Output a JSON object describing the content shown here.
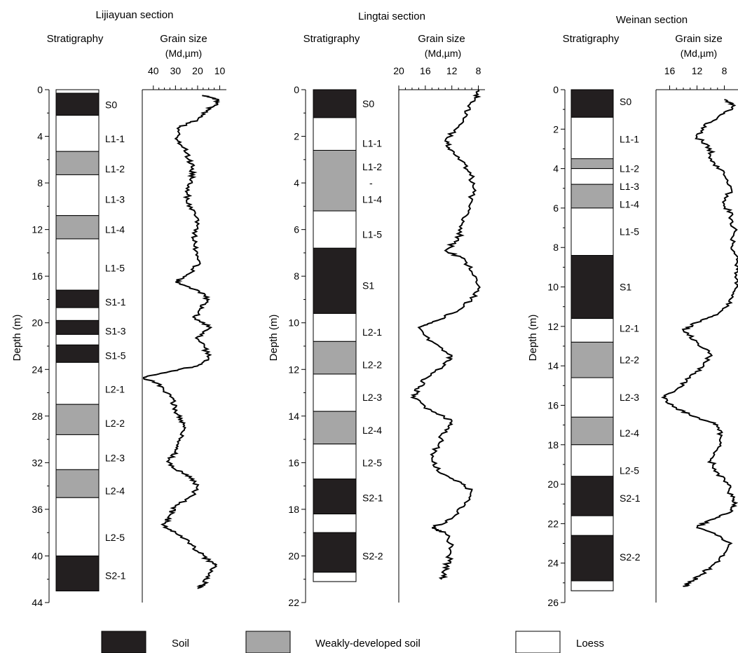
{
  "legend": {
    "items": [
      {
        "label": "Soil",
        "color": "#231f20"
      },
      {
        "label": "Weakly-developed soil",
        "color": "#a6a6a6"
      },
      {
        "label": "Loess",
        "color": "#ffffff"
      }
    ]
  },
  "chart_data": [
    {
      "type": "stratigraphic-log",
      "title": "Lijiayuan section",
      "stratigraphy_header": "Stratigraphy",
      "grain_header": "Grain size",
      "grain_unit": "(Md,µm)",
      "ylabel": "Depth (m)",
      "ylim": [
        0,
        44
      ],
      "yticks": [
        0,
        4,
        8,
        12,
        16,
        20,
        24,
        28,
        32,
        36,
        40,
        44
      ],
      "xlim": [
        45,
        7
      ],
      "xticks": [
        40,
        30,
        20,
        10
      ],
      "column_bottom": 43,
      "layers": [
        {
          "top": 0.3,
          "bottom": 2.2,
          "type": "soil"
        },
        {
          "top": 2.2,
          "bottom": 5.3,
          "type": "loess"
        },
        {
          "top": 5.3,
          "bottom": 7.3,
          "type": "weak"
        },
        {
          "top": 7.3,
          "bottom": 10.8,
          "type": "loess"
        },
        {
          "top": 10.8,
          "bottom": 12.8,
          "type": "weak"
        },
        {
          "top": 12.8,
          "bottom": 17.2,
          "type": "loess"
        },
        {
          "top": 17.2,
          "bottom": 18.7,
          "type": "soil"
        },
        {
          "top": 18.7,
          "bottom": 19.8,
          "type": "loess"
        },
        {
          "top": 19.8,
          "bottom": 21.0,
          "type": "soil"
        },
        {
          "top": 21.0,
          "bottom": 21.9,
          "type": "loess"
        },
        {
          "top": 21.9,
          "bottom": 23.4,
          "type": "soil"
        },
        {
          "top": 23.4,
          "bottom": 27.0,
          "type": "loess"
        },
        {
          "top": 27.0,
          "bottom": 29.6,
          "type": "weak"
        },
        {
          "top": 29.6,
          "bottom": 32.6,
          "type": "loess"
        },
        {
          "top": 32.6,
          "bottom": 35.0,
          "type": "weak"
        },
        {
          "top": 35.0,
          "bottom": 40.0,
          "type": "loess"
        },
        {
          "top": 40.0,
          "bottom": 43.0,
          "type": "soil"
        }
      ],
      "units": [
        {
          "label": "S0",
          "depth": 1.3
        },
        {
          "label": "L1-1",
          "depth": 4.2
        },
        {
          "label": "L1-2",
          "depth": 6.8
        },
        {
          "label": "L1-3",
          "depth": 9.4
        },
        {
          "label": "L1-4",
          "depth": 12.0
        },
        {
          "label": "L1-5",
          "depth": 15.3
        },
        {
          "label": "S1-1",
          "depth": 18.2
        },
        {
          "label": "S1-3",
          "depth": 20.7
        },
        {
          "label": "S1-5",
          "depth": 22.8
        },
        {
          "label": "L2-1",
          "depth": 25.7
        },
        {
          "label": "L2-2",
          "depth": 28.6
        },
        {
          "label": "L2-3",
          "depth": 31.6
        },
        {
          "label": "L2-4",
          "depth": 34.4
        },
        {
          "label": "L2-5",
          "depth": 38.4
        },
        {
          "label": "S2-1",
          "depth": 41.7
        }
      ],
      "grain_size": [
        [
          0.5,
          18
        ],
        [
          0.8,
          12
        ],
        [
          1.2,
          11
        ],
        [
          1.8,
          16
        ],
        [
          2.6,
          20
        ],
        [
          3.2,
          28
        ],
        [
          4.2,
          30
        ],
        [
          5.0,
          26
        ],
        [
          6.0,
          24
        ],
        [
          6.8,
          22
        ],
        [
          7.6,
          23
        ],
        [
          8.6,
          24
        ],
        [
          9.6,
          25
        ],
        [
          10.6,
          21
        ],
        [
          11.8,
          20
        ],
        [
          12.8,
          22
        ],
        [
          13.8,
          21
        ],
        [
          14.8,
          19
        ],
        [
          15.8,
          24
        ],
        [
          16.5,
          30
        ],
        [
          17.2,
          20
        ],
        [
          18.0,
          15
        ],
        [
          18.8,
          19
        ],
        [
          19.6,
          21
        ],
        [
          20.4,
          14
        ],
        [
          21.2,
          20
        ],
        [
          22.0,
          17
        ],
        [
          23.0,
          15
        ],
        [
          23.7,
          20
        ],
        [
          24.2,
          33
        ],
        [
          24.7,
          45
        ],
        [
          25.2,
          38
        ],
        [
          26.0,
          34
        ],
        [
          26.8,
          31
        ],
        [
          27.6,
          30
        ],
        [
          28.4,
          27
        ],
        [
          29.2,
          26
        ],
        [
          30.2,
          29
        ],
        [
          31.0,
          30
        ],
        [
          31.8,
          33
        ],
        [
          32.6,
          30
        ],
        [
          33.2,
          23
        ],
        [
          34.0,
          20
        ],
        [
          34.8,
          22
        ],
        [
          35.8,
          30
        ],
        [
          36.6,
          33
        ],
        [
          37.4,
          35
        ],
        [
          38.0,
          30
        ],
        [
          38.8,
          24
        ],
        [
          39.6,
          20
        ],
        [
          40.4,
          15
        ],
        [
          40.8,
          12
        ],
        [
          41.6,
          15
        ],
        [
          42.4,
          17
        ],
        [
          42.8,
          20
        ]
      ]
    },
    {
      "type": "stratigraphic-log",
      "title": "Lingtai section",
      "stratigraphy_header": "Stratigraphy",
      "grain_header": "Grain size",
      "grain_unit": "(Md,µm)",
      "ylabel": "Depth (m)",
      "ylim": [
        0,
        22
      ],
      "yticks": [
        0,
        2,
        4,
        6,
        8,
        10,
        12,
        14,
        16,
        18,
        20,
        22
      ],
      "xlim": [
        20,
        7
      ],
      "xticks": [
        20,
        16,
        12,
        8
      ],
      "column_bottom": 21.1,
      "layers": [
        {
          "top": 0.0,
          "bottom": 1.2,
          "type": "soil"
        },
        {
          "top": 1.2,
          "bottom": 2.6,
          "type": "loess"
        },
        {
          "top": 2.6,
          "bottom": 5.2,
          "type": "weak"
        },
        {
          "top": 5.2,
          "bottom": 6.8,
          "type": "loess"
        },
        {
          "top": 6.8,
          "bottom": 9.6,
          "type": "soil"
        },
        {
          "top": 9.6,
          "bottom": 10.8,
          "type": "loess"
        },
        {
          "top": 10.8,
          "bottom": 12.2,
          "type": "weak"
        },
        {
          "top": 12.2,
          "bottom": 13.8,
          "type": "loess"
        },
        {
          "top": 13.8,
          "bottom": 15.2,
          "type": "weak"
        },
        {
          "top": 15.2,
          "bottom": 16.7,
          "type": "loess"
        },
        {
          "top": 16.7,
          "bottom": 18.2,
          "type": "soil"
        },
        {
          "top": 18.2,
          "bottom": 19.0,
          "type": "loess"
        },
        {
          "top": 19.0,
          "bottom": 20.7,
          "type": "soil"
        },
        {
          "top": 20.7,
          "bottom": 21.1,
          "type": "loess"
        }
      ],
      "units": [
        {
          "label": "S0",
          "depth": 0.6
        },
        {
          "label": "L1-1",
          "depth": 2.3
        },
        {
          "label": "L1-2",
          "depth": 3.3
        },
        {
          "label": "-",
          "depth": 4.0
        },
        {
          "label": "L1-4",
          "depth": 4.7
        },
        {
          "label": "L1-5",
          "depth": 6.2
        },
        {
          "label": "S1",
          "depth": 8.4
        },
        {
          "label": "L2-1",
          "depth": 10.4
        },
        {
          "label": "L2-2",
          "depth": 11.8
        },
        {
          "label": "L2-3",
          "depth": 13.2
        },
        {
          "label": "L2-4",
          "depth": 14.6
        },
        {
          "label": "L2-5",
          "depth": 16.0
        },
        {
          "label": "S2-1",
          "depth": 17.5
        },
        {
          "label": "S2-2",
          "depth": 20.0
        }
      ],
      "grain_size": [
        [
          0.0,
          8
        ],
        [
          0.4,
          8.5
        ],
        [
          1.0,
          10
        ],
        [
          1.6,
          11
        ],
        [
          2.2,
          13
        ],
        [
          2.6,
          12
        ],
        [
          3.2,
          10
        ],
        [
          3.8,
          9
        ],
        [
          4.4,
          8.8
        ],
        [
          5.2,
          9.5
        ],
        [
          5.8,
          10.5
        ],
        [
          6.4,
          11
        ],
        [
          6.9,
          13
        ],
        [
          7.3,
          10
        ],
        [
          7.8,
          9
        ],
        [
          8.4,
          8
        ],
        [
          9.0,
          9
        ],
        [
          9.6,
          12
        ],
        [
          10.0,
          15
        ],
        [
          10.2,
          17
        ],
        [
          10.8,
          15
        ],
        [
          11.4,
          12
        ],
        [
          11.8,
          13
        ],
        [
          12.4,
          16
        ],
        [
          12.8,
          17
        ],
        [
          13.2,
          18
        ],
        [
          13.8,
          15
        ],
        [
          14.2,
          12
        ],
        [
          14.6,
          13
        ],
        [
          15.2,
          14
        ],
        [
          15.8,
          15
        ],
        [
          16.4,
          14
        ],
        [
          16.8,
          11
        ],
        [
          17.2,
          9
        ],
        [
          17.8,
          10
        ],
        [
          18.4,
          12
        ],
        [
          18.8,
          15
        ],
        [
          19.0,
          13
        ],
        [
          19.6,
          12
        ],
        [
          20.2,
          12.5
        ],
        [
          20.6,
          13
        ],
        [
          21.0,
          13.5
        ]
      ]
    },
    {
      "type": "stratigraphic-log",
      "title": "Weinan section",
      "stratigraphy_header": "Stratigraphy",
      "grain_header": "Grain size",
      "grain_unit": "(Md,µm)",
      "ylabel": "Depth (m)",
      "ylim": [
        0,
        26
      ],
      "yticks": [
        0,
        2,
        4,
        6,
        8,
        10,
        12,
        14,
        16,
        18,
        20,
        22,
        24,
        26
      ],
      "xlim": [
        18,
        6
      ],
      "xticks": [
        16,
        12,
        8
      ],
      "column_bottom": 25.4,
      "layers": [
        {
          "top": 0.0,
          "bottom": 1.4,
          "type": "soil"
        },
        {
          "top": 1.4,
          "bottom": 3.5,
          "type": "loess"
        },
        {
          "top": 3.5,
          "bottom": 4.0,
          "type": "weak"
        },
        {
          "top": 4.0,
          "bottom": 4.8,
          "type": "loess"
        },
        {
          "top": 4.8,
          "bottom": 6.0,
          "type": "weak"
        },
        {
          "top": 6.0,
          "bottom": 8.4,
          "type": "loess"
        },
        {
          "top": 8.4,
          "bottom": 11.6,
          "type": "soil"
        },
        {
          "top": 11.6,
          "bottom": 12.8,
          "type": "loess"
        },
        {
          "top": 12.8,
          "bottom": 14.6,
          "type": "weak"
        },
        {
          "top": 14.6,
          "bottom": 16.6,
          "type": "loess"
        },
        {
          "top": 16.6,
          "bottom": 18.0,
          "type": "weak"
        },
        {
          "top": 18.0,
          "bottom": 19.6,
          "type": "loess"
        },
        {
          "top": 19.6,
          "bottom": 21.6,
          "type": "soil"
        },
        {
          "top": 21.6,
          "bottom": 22.6,
          "type": "loess"
        },
        {
          "top": 22.6,
          "bottom": 24.9,
          "type": "soil"
        },
        {
          "top": 24.9,
          "bottom": 25.4,
          "type": "loess"
        }
      ],
      "units": [
        {
          "label": "S0",
          "depth": 0.6
        },
        {
          "label": "L1-1",
          "depth": 2.5
        },
        {
          "label": "L1-2",
          "depth": 4.0
        },
        {
          "label": "L1-3",
          "depth": 4.9
        },
        {
          "label": "L1-4",
          "depth": 5.8
        },
        {
          "label": "L1-5",
          "depth": 7.2
        },
        {
          "label": "S1",
          "depth": 10.0
        },
        {
          "label": "L2-1",
          "depth": 12.1
        },
        {
          "label": "L2-2",
          "depth": 13.7
        },
        {
          "label": "L2-3",
          "depth": 15.6
        },
        {
          "label": "L2-4",
          "depth": 17.4
        },
        {
          "label": "L2-5",
          "depth": 19.3
        },
        {
          "label": "S2-1",
          "depth": 20.7
        },
        {
          "label": "S2-2",
          "depth": 23.7
        }
      ],
      "grain_size": [
        [
          0.5,
          8
        ],
        [
          0.8,
          6.5
        ],
        [
          1.2,
          8
        ],
        [
          1.8,
          11
        ],
        [
          2.4,
          12
        ],
        [
          3.0,
          10
        ],
        [
          3.6,
          10
        ],
        [
          4.2,
          8
        ],
        [
          5.0,
          7
        ],
        [
          5.8,
          8
        ],
        [
          6.4,
          7
        ],
        [
          7.2,
          6.5
        ],
        [
          8.0,
          7
        ],
        [
          8.6,
          6.2
        ],
        [
          9.4,
          6.2
        ],
        [
          10.2,
          6.5
        ],
        [
          10.8,
          7
        ],
        [
          11.4,
          9
        ],
        [
          11.8,
          12
        ],
        [
          12.2,
          14
        ],
        [
          12.8,
          12
        ],
        [
          13.4,
          10
        ],
        [
          14.0,
          11
        ],
        [
          14.6,
          13
        ],
        [
          15.2,
          15
        ],
        [
          15.6,
          17
        ],
        [
          16.2,
          15
        ],
        [
          16.6,
          12
        ],
        [
          17.0,
          9
        ],
        [
          17.6,
          8.5
        ],
        [
          18.2,
          9
        ],
        [
          18.8,
          10
        ],
        [
          19.4,
          9
        ],
        [
          20.0,
          7.5
        ],
        [
          20.6,
          7
        ],
        [
          21.0,
          6.5
        ],
        [
          21.4,
          7
        ],
        [
          21.8,
          10
        ],
        [
          22.2,
          12
        ],
        [
          22.6,
          9
        ],
        [
          23.0,
          7
        ],
        [
          23.6,
          8
        ],
        [
          24.2,
          10
        ],
        [
          24.6,
          11.5
        ],
        [
          25.0,
          13
        ],
        [
          25.2,
          14
        ]
      ]
    }
  ]
}
